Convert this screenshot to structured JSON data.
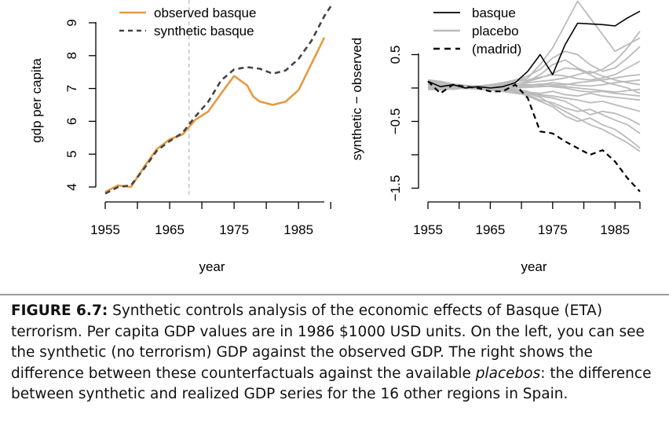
{
  "chart_data": [
    {
      "type": "line",
      "xlabel": "year",
      "ylabel": "gdp per capita",
      "xlim": [
        1955,
        1997
      ],
      "ylim": [
        3.6,
        9.2
      ],
      "xticks": [
        "1955",
        "1965",
        "1975",
        "1985"
      ],
      "xtick_values": [
        1955,
        1965,
        1975,
        1985
      ],
      "yticks": [
        "4",
        "5",
        "6",
        "7",
        "8",
        "9"
      ],
      "ytick_values": [
        4,
        5,
        6,
        7,
        8,
        9
      ],
      "vline": 1968,
      "legend_position": "top",
      "series": [
        {
          "name": "observed basque",
          "color": "#e69a3f",
          "style": "solid",
          "x": [
            1955,
            1957,
            1959,
            1961,
            1963,
            1965,
            1967,
            1969,
            1971,
            1973,
            1975,
            1977,
            1978,
            1979,
            1981,
            1983,
            1985,
            1987,
            1989
          ],
          "y": [
            3.85,
            4.05,
            4.0,
            4.6,
            5.15,
            5.45,
            5.6,
            6.05,
            6.3,
            6.85,
            7.38,
            7.1,
            6.75,
            6.6,
            6.5,
            6.6,
            6.95,
            7.75,
            8.55
          ]
        },
        {
          "name": "synthetic basque",
          "color": "#444444",
          "style": "dashed",
          "x": [
            1955,
            1957,
            1959,
            1961,
            1963,
            1965,
            1967,
            1969,
            1971,
            1973,
            1975,
            1977,
            1979,
            1981,
            1983,
            1985,
            1987,
            1989,
            1990
          ],
          "y": [
            3.8,
            4.0,
            4.05,
            4.55,
            5.1,
            5.4,
            5.65,
            6.15,
            6.6,
            7.25,
            7.58,
            7.65,
            7.6,
            7.45,
            7.55,
            7.9,
            8.45,
            9.2,
            9.5
          ]
        }
      ]
    },
    {
      "type": "line",
      "xlabel": "year",
      "ylabel": "synthetic − observed",
      "xlim": [
        1955,
        1996
      ],
      "ylim": [
        -1.6,
        1.2
      ],
      "xticks": [
        "1955",
        "1965",
        "1975",
        "1985"
      ],
      "xtick_values": [
        1955,
        1965,
        1975,
        1985
      ],
      "yticks": [
        "−1.5",
        "−0.5",
        "0.5"
      ],
      "ytick_values": [
        -1.5,
        -0.5,
        0.5
      ],
      "legend_position": "top",
      "years": [
        1955,
        1957,
        1959,
        1961,
        1963,
        1965,
        1967,
        1969,
        1971,
        1973,
        1975,
        1977,
        1979,
        1981,
        1983,
        1985,
        1987,
        1989
      ],
      "series": [
        {
          "name": "basque",
          "color": "#000000",
          "style": "solid",
          "y": [
            0.1,
            0.02,
            0.05,
            0.0,
            0.02,
            0.0,
            0.02,
            0.08,
            0.25,
            0.5,
            0.2,
            0.65,
            0.97,
            0.96,
            0.95,
            0.93,
            1.05,
            1.15
          ]
        },
        {
          "name": "(madrid)",
          "color": "#000000",
          "style": "dashed",
          "y": [
            0.1,
            -0.08,
            0.05,
            0.02,
            0.0,
            -0.05,
            -0.05,
            0.05,
            -0.15,
            -0.65,
            -0.68,
            -0.8,
            -0.9,
            -1.0,
            -0.93,
            -1.1,
            -1.35,
            -1.55
          ]
        },
        {
          "name": "placebo",
          "color": "#bbbbbb",
          "style": "solid",
          "placebos": [
            [
              0.0,
              0.02,
              0.0,
              0.01,
              0.0,
              0.02,
              0.05,
              0.1,
              0.15,
              0.35,
              0.6,
              0.95,
              1.3,
              1.05,
              0.8,
              0.55,
              0.65,
              0.75
            ],
            [
              0.02,
              0.03,
              0.05,
              0.04,
              0.03,
              0.05,
              0.08,
              0.12,
              0.18,
              0.28,
              0.45,
              0.55,
              0.5,
              0.35,
              0.25,
              0.3,
              0.45,
              0.62
            ],
            [
              0.0,
              -0.01,
              0.01,
              0.0,
              0.02,
              0.03,
              0.04,
              0.06,
              0.1,
              0.2,
              0.35,
              0.42,
              0.3,
              0.22,
              0.28,
              0.4,
              0.6,
              0.85
            ],
            [
              0.08,
              0.06,
              0.04,
              0.03,
              0.02,
              0.03,
              0.06,
              0.1,
              0.12,
              0.16,
              0.2,
              0.18,
              0.14,
              0.12,
              0.15,
              0.2,
              0.3,
              0.4
            ],
            [
              0.0,
              0.02,
              0.01,
              0.02,
              0.0,
              0.01,
              0.02,
              0.03,
              0.04,
              0.06,
              0.05,
              0.05,
              0.08,
              0.1,
              0.12,
              0.15,
              0.18,
              0.2
            ],
            [
              0.05,
              0.04,
              0.02,
              0.0,
              0.01,
              0.0,
              0.0,
              0.02,
              0.03,
              0.05,
              0.08,
              0.06,
              0.04,
              0.03,
              0.05,
              0.08,
              0.1,
              0.12
            ],
            [
              -0.02,
              0.0,
              0.0,
              -0.01,
              0.0,
              0.02,
              0.01,
              0.0,
              0.01,
              0.02,
              0.03,
              0.02,
              0.0,
              -0.02,
              -0.04,
              -0.06,
              -0.04,
              -0.02
            ],
            [
              0.03,
              0.01,
              0.0,
              0.0,
              -0.01,
              0.0,
              0.02,
              0.04,
              0.05,
              0.04,
              0.02,
              0.0,
              -0.04,
              -0.06,
              -0.05,
              -0.08,
              -0.1,
              -0.12
            ],
            [
              -0.02,
              -0.03,
              -0.01,
              0.0,
              0.0,
              -0.02,
              -0.02,
              -0.04,
              -0.06,
              -0.08,
              -0.05,
              -0.1,
              -0.12,
              -0.08,
              -0.12,
              -0.14,
              -0.16,
              -0.18
            ],
            [
              0.0,
              -0.01,
              0.0,
              0.02,
              0.0,
              -0.01,
              -0.03,
              -0.05,
              -0.08,
              -0.1,
              -0.12,
              -0.15,
              -0.18,
              -0.22,
              -0.2,
              -0.25,
              -0.3,
              -0.35
            ],
            [
              0.0,
              0.0,
              0.02,
              0.0,
              0.0,
              0.0,
              -0.01,
              -0.02,
              -0.05,
              -0.12,
              -0.15,
              -0.2,
              -0.3,
              -0.4,
              -0.35,
              -0.38,
              -0.45,
              -0.55
            ],
            [
              0.02,
              0.0,
              -0.02,
              0.0,
              -0.02,
              -0.03,
              -0.05,
              -0.08,
              -0.1,
              -0.18,
              -0.22,
              -0.3,
              -0.35,
              -0.32,
              -0.4,
              -0.48,
              -0.55,
              -0.68
            ],
            [
              0.1,
              0.08,
              0.05,
              0.03,
              0.0,
              -0.02,
              -0.03,
              -0.06,
              -0.12,
              -0.2,
              -0.28,
              -0.42,
              -0.5,
              -0.45,
              -0.55,
              -0.62,
              -0.75,
              -0.9
            ],
            [
              0.12,
              0.1,
              0.06,
              0.04,
              0.02,
              0.01,
              0.0,
              -0.03,
              -0.08,
              -0.14,
              -0.25,
              -0.35,
              -0.45,
              -0.55,
              -0.62,
              -0.72,
              -0.82,
              -0.95
            ],
            [
              0.04,
              0.03,
              0.02,
              0.0,
              0.02,
              0.01,
              0.03,
              0.06,
              0.1,
              0.15,
              0.22,
              0.3,
              0.28,
              0.2,
              0.1,
              0.05,
              0.0,
              -0.08
            ],
            [
              -0.01,
              0.0,
              0.01,
              0.0,
              -0.01,
              0.0,
              0.02,
              0.03,
              0.08,
              0.1,
              0.12,
              0.15,
              0.2,
              0.25,
              0.18,
              0.12,
              0.08,
              0.05
            ]
          ]
        }
      ]
    }
  ],
  "caption": {
    "label": "FIGURE 6.7:",
    "part1": " Synthetic controls analysis of the economic effects of Basque (ETA) terrorism. Per capita GDP values are in 1986 $1000 USD units. On the left, you can see the synthetic (no terrorism) GDP against the observed GDP. The right shows the difference between these counterfactuals against the available ",
    "emph": "placebos",
    "part2": ": the difference between synthetic and realized GDP series for the 16 other regions in Spain."
  }
}
